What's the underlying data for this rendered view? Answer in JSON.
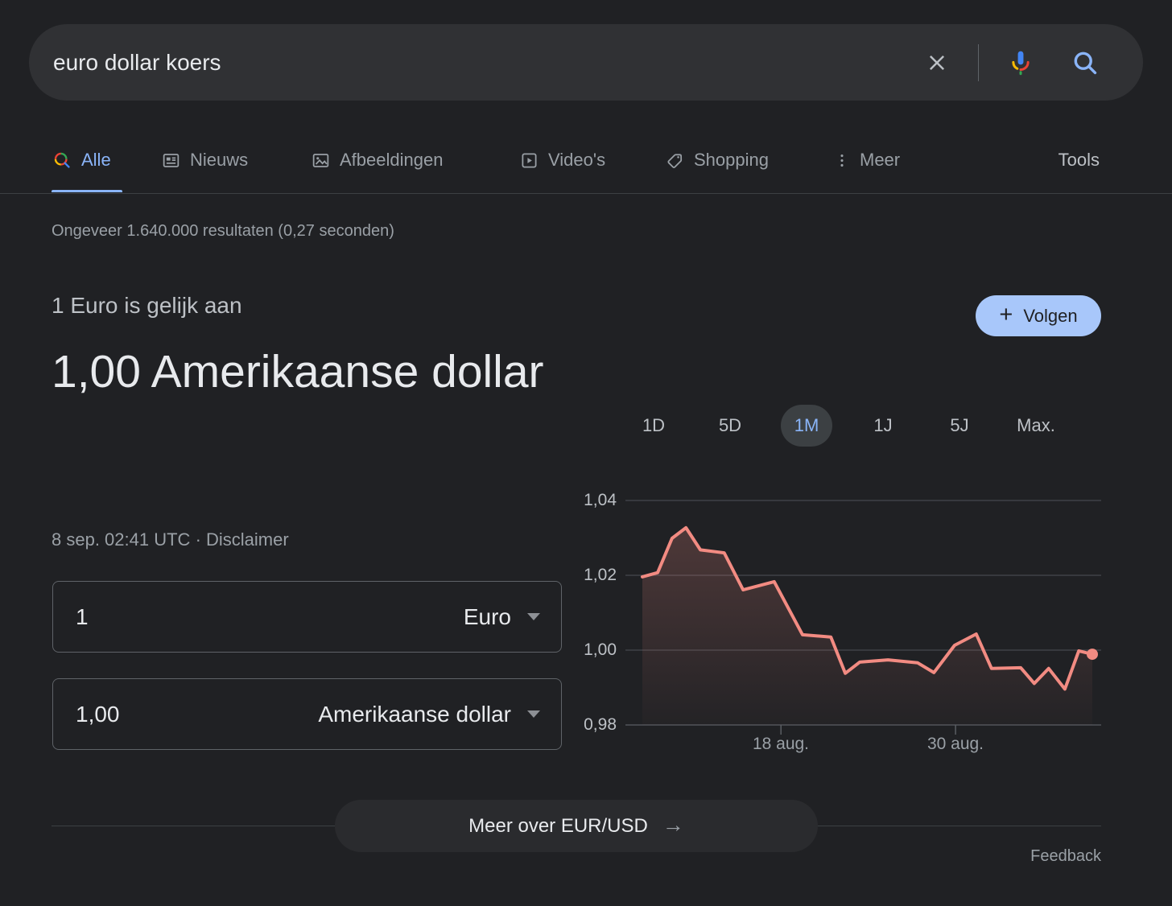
{
  "search_bar": {
    "query": "euro dollar koers"
  },
  "tabs": {
    "items": [
      {
        "label": "Alle",
        "selected": true
      },
      {
        "label": "Nieuws"
      },
      {
        "label": "Afbeeldingen"
      },
      {
        "label": "Video's"
      },
      {
        "label": "Shopping"
      },
      {
        "label": "Meer"
      }
    ],
    "tools_label": "Tools"
  },
  "results_stats": "Ongeveer 1.640.000 resultaten (0,27 seconden)",
  "converter": {
    "heading": "1 Euro is gelijk aan",
    "value": "1,00 Amerikaanse dollar",
    "timestamp": "8 sep. 02:41 UTC",
    "dot_separator": "·",
    "disclaimer_label": "Disclaimer",
    "follow_button": {
      "plus": "+",
      "label": "Volgen"
    },
    "from_row": {
      "amount": "1",
      "currency": "Euro"
    },
    "to_row": {
      "amount": "1,00",
      "currency": "Amerikaanse dollar"
    },
    "more_button_label": "Meer over EUR/USD",
    "arrow": "→",
    "feedback_label": "Feedback"
  },
  "chart_data": {
    "type": "area",
    "pair": "EUR/USD",
    "range_tabs": [
      "1D",
      "5D",
      "1M",
      "1J",
      "5J",
      "Max."
    ],
    "selected_range": "1M",
    "ylim": [
      0.978,
      1.044
    ],
    "grid": true,
    "y_ticks": [
      {
        "label": "1,04",
        "value": 1.04
      },
      {
        "label": "1,02",
        "value": 1.02
      },
      {
        "label": "1,00",
        "value": 1.0
      },
      {
        "label": "0,98",
        "value": 0.98
      }
    ],
    "x_ticks": [
      {
        "label": "18 aug.",
        "frac": 0.308
      },
      {
        "label": "30 aug.",
        "frac": 0.696
      }
    ],
    "points": [
      {
        "frac": 0.0,
        "value": 1.0196
      },
      {
        "frac": 0.034,
        "value": 1.0207
      },
      {
        "frac": 0.066,
        "value": 1.0299
      },
      {
        "frac": 0.097,
        "value": 1.0327
      },
      {
        "frac": 0.129,
        "value": 1.0268
      },
      {
        "frac": 0.182,
        "value": 1.026
      },
      {
        "frac": 0.224,
        "value": 1.0161
      },
      {
        "frac": 0.293,
        "value": 1.0183
      },
      {
        "frac": 0.356,
        "value": 1.0041
      },
      {
        "frac": 0.419,
        "value": 1.0035
      },
      {
        "frac": 0.451,
        "value": 0.9938
      },
      {
        "frac": 0.483,
        "value": 0.9968
      },
      {
        "frac": 0.546,
        "value": 0.9974
      },
      {
        "frac": 0.612,
        "value": 0.9966
      },
      {
        "frac": 0.648,
        "value": 0.994
      },
      {
        "frac": 0.694,
        "value": 1.0013
      },
      {
        "frac": 0.742,
        "value": 1.0043
      },
      {
        "frac": 0.776,
        "value": 0.9951
      },
      {
        "frac": 0.841,
        "value": 0.9953
      },
      {
        "frac": 0.871,
        "value": 0.9911
      },
      {
        "frac": 0.903,
        "value": 0.9951
      },
      {
        "frac": 0.939,
        "value": 0.9896
      },
      {
        "frac": 0.97,
        "value": 0.9998
      },
      {
        "frac": 1.0,
        "value": 0.9989
      }
    ],
    "line_color": "#f28b82",
    "end_marker": true
  },
  "colors": {
    "page_bg": "#202124",
    "surface": "#303134",
    "text_primary": "#e8eaed",
    "text_secondary": "#9aa0a6",
    "accent_blue": "#8ab4f8",
    "follow_button_bg": "#a8c7fa",
    "chart_line": "#f28b82",
    "divider": "#3c4043",
    "google_blue": "#4285f4",
    "google_red": "#ea4335",
    "google_yellow": "#fbbc04",
    "google_green": "#34a853"
  }
}
